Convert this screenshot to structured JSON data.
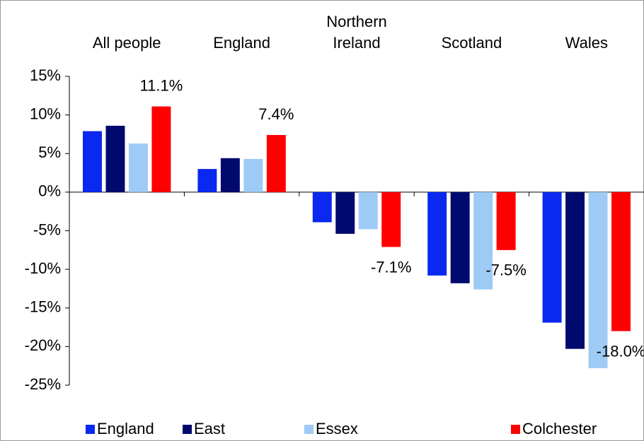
{
  "chart_data": {
    "type": "bar",
    "categories": [
      "All people",
      "England",
      "Northern Ireland",
      "Scotland",
      "Wales"
    ],
    "series": [
      {
        "name": "England",
        "color": "#0a28f0",
        "values": [
          7.9,
          3.0,
          -3.9,
          -10.8,
          -16.9
        ]
      },
      {
        "name": "East",
        "color": "#000a6e",
        "values": [
          8.6,
          4.4,
          -5.4,
          -11.8,
          -20.3
        ]
      },
      {
        "name": "Essex",
        "color": "#9ecbf5",
        "values": [
          6.3,
          4.3,
          -4.8,
          -12.6,
          -22.8
        ]
      },
      {
        "name": "Colchester",
        "color": "#ff0000",
        "values": [
          11.1,
          7.4,
          -7.1,
          -7.5,
          -18.0
        ],
        "value_labels": [
          "11.1%",
          "7.4%",
          "-7.1%",
          "-7.5%",
          "-18.0%"
        ]
      }
    ],
    "ylim": [
      -25,
      15
    ],
    "yticks": [
      {
        "value": -25,
        "label": "-25%"
      },
      {
        "value": -20,
        "label": "-20%"
      },
      {
        "value": -15,
        "label": "-15%"
      },
      {
        "value": -10,
        "label": "-10%"
      },
      {
        "value": -5,
        "label": "-5%"
      },
      {
        "value": 0,
        "label": "0%"
      },
      {
        "value": 5,
        "label": "5%"
      },
      {
        "value": 10,
        "label": "10%"
      },
      {
        "value": 15,
        "label": "15%"
      }
    ],
    "legend": "bottom"
  }
}
